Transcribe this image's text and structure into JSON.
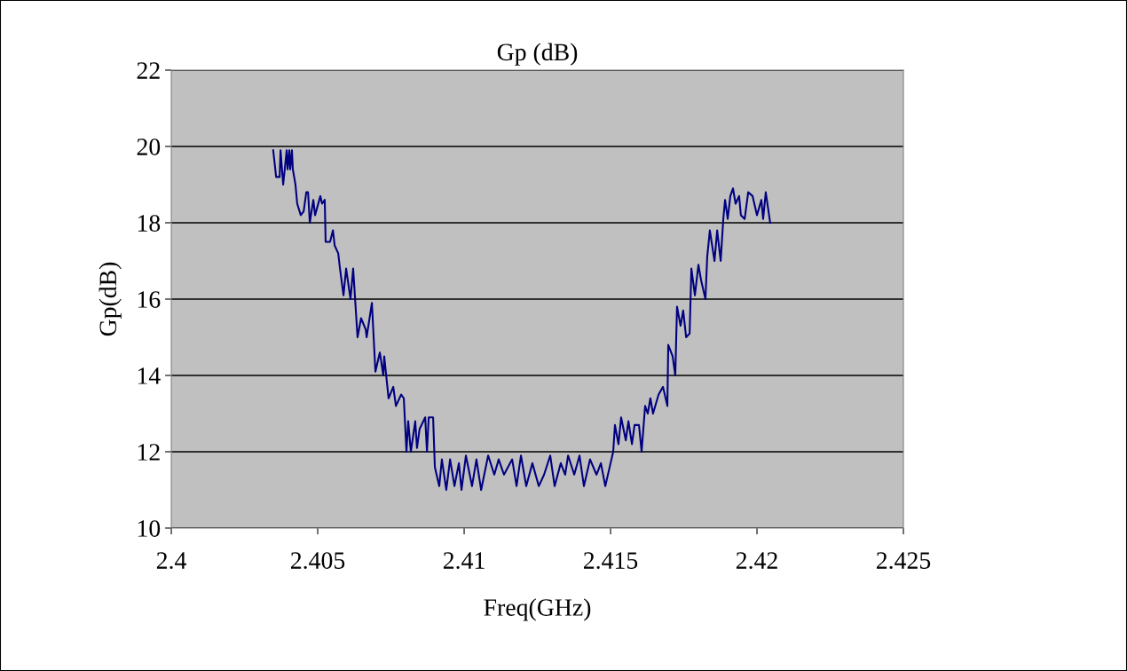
{
  "chart_data": {
    "type": "line",
    "title": "Gp (dB)",
    "xlabel": "Freq(GHz)",
    "ylabel": "Gp(dB)",
    "xlim": [
      2.4,
      2.425
    ],
    "xticks": [
      2.4,
      2.405,
      2.41,
      2.415,
      2.42,
      2.425
    ],
    "ylim": [
      10,
      22
    ],
    "yticks": [
      10,
      12,
      14,
      16,
      18,
      20,
      22
    ],
    "grid": "y",
    "marker": "none",
    "line_style": "solid",
    "series": [
      {
        "color": "#000080",
        "x": [
          2.40348,
          2.40358,
          2.4037,
          2.40373,
          2.40382,
          2.40394,
          2.40397,
          2.40403,
          2.40406,
          2.40412,
          2.40415,
          2.40424,
          2.4043,
          2.40442,
          2.40452,
          2.40461,
          2.40467,
          2.40473,
          2.40485,
          2.40491,
          2.40509,
          2.40515,
          2.40524,
          2.40527,
          2.40542,
          2.40552,
          2.40558,
          2.4057,
          2.40576,
          2.40588,
          2.40597,
          2.40612,
          2.40621,
          2.40636,
          2.40648,
          2.40664,
          2.40667,
          2.40685,
          2.40697,
          2.40712,
          2.40724,
          2.40727,
          2.40742,
          2.40758,
          2.40767,
          2.40785,
          2.40794,
          2.40803,
          2.40809,
          2.40818,
          2.40833,
          2.40839,
          2.40848,
          2.40867,
          2.40873,
          2.40879,
          2.40894,
          2.409,
          2.40915,
          2.40924,
          2.40939,
          2.40952,
          2.40967,
          2.40982,
          2.40991,
          2.41006,
          2.41027,
          2.41042,
          2.41058,
          2.41082,
          2.41103,
          2.41118,
          2.41136,
          2.41164,
          2.41179,
          2.41194,
          2.41212,
          2.41233,
          2.41255,
          2.41273,
          2.41294,
          2.41309,
          2.4133,
          2.41345,
          2.41355,
          2.41376,
          2.41394,
          2.41409,
          2.4143,
          2.41452,
          2.41467,
          2.41482,
          2.415,
          2.41509,
          2.41515,
          2.41527,
          2.41536,
          2.41552,
          2.41561,
          2.41573,
          2.41582,
          2.41597,
          2.41606,
          2.41618,
          2.41627,
          2.41636,
          2.41645,
          2.41664,
          2.41679,
          2.41694,
          2.41697,
          2.41712,
          2.41721,
          2.41727,
          2.41739,
          2.41748,
          2.41758,
          2.4177,
          2.41776,
          2.41788,
          2.418,
          2.41809,
          2.41824,
          2.4183,
          2.41839,
          2.41855,
          2.41864,
          2.41876,
          2.41885,
          2.41891,
          2.419,
          2.41909,
          2.41918,
          2.41927,
          2.41939,
          2.41945,
          2.41958,
          2.4197,
          2.41985,
          2.42,
          2.42015,
          2.42021,
          2.4203,
          2.42045
        ],
        "values": [
          19.9,
          19.2,
          19.2,
          19.9,
          19.0,
          19.9,
          19.4,
          19.9,
          19.4,
          19.9,
          19.4,
          19.0,
          18.5,
          18.2,
          18.3,
          18.8,
          18.8,
          18.0,
          18.6,
          18.2,
          18.7,
          18.5,
          18.6,
          17.5,
          17.5,
          17.8,
          17.4,
          17.2,
          16.8,
          16.1,
          16.8,
          16.0,
          16.8,
          15.0,
          15.5,
          15.2,
          15.0,
          15.9,
          14.1,
          14.6,
          14.0,
          14.5,
          13.4,
          13.7,
          13.2,
          13.5,
          13.4,
          12.0,
          12.8,
          12.0,
          12.8,
          12.1,
          12.6,
          12.9,
          12.0,
          12.9,
          12.9,
          11.6,
          11.1,
          11.8,
          11.0,
          11.8,
          11.1,
          11.7,
          11.0,
          11.9,
          11.1,
          11.8,
          11.0,
          11.9,
          11.4,
          11.8,
          11.4,
          11.8,
          11.1,
          11.9,
          11.1,
          11.7,
          11.1,
          11.4,
          11.9,
          11.1,
          11.7,
          11.4,
          11.9,
          11.4,
          11.9,
          11.1,
          11.8,
          11.4,
          11.7,
          11.1,
          11.7,
          12.0,
          12.7,
          12.2,
          12.9,
          12.3,
          12.8,
          12.2,
          12.7,
          12.7,
          12.0,
          13.2,
          13.0,
          13.4,
          13.0,
          13.5,
          13.7,
          13.2,
          14.8,
          14.5,
          14.0,
          15.8,
          15.3,
          15.7,
          15.0,
          15.1,
          16.8,
          16.1,
          16.9,
          16.5,
          16.0,
          17.1,
          17.8,
          17.0,
          17.8,
          17.0,
          18.1,
          18.6,
          18.1,
          18.7,
          18.9,
          18.5,
          18.7,
          18.2,
          18.1,
          18.8,
          18.7,
          18.2,
          18.6,
          18.1,
          18.8,
          18.0
        ]
      }
    ]
  }
}
